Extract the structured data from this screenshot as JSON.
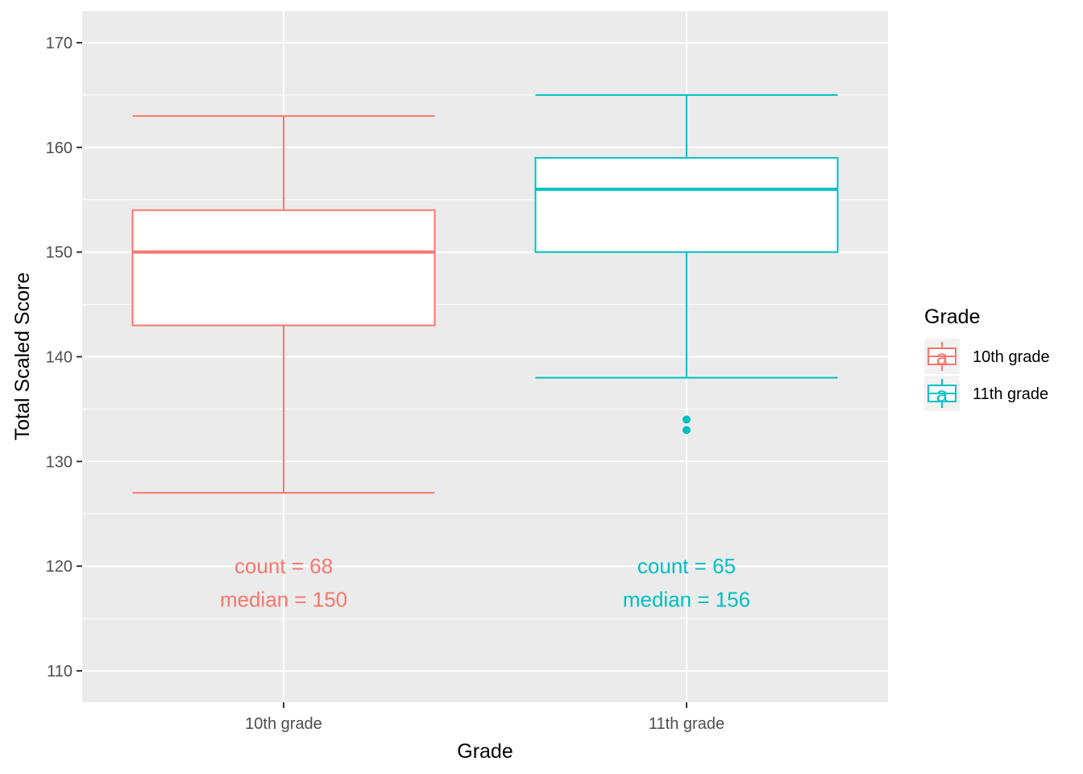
{
  "chart_data": {
    "type": "boxplot",
    "xlabel": "Grade",
    "ylabel": "Total Scaled Score",
    "ylim": [
      107,
      173
    ],
    "yticks": [
      110,
      120,
      130,
      140,
      150,
      160,
      170
    ],
    "categories": [
      "10th grade",
      "11th grade"
    ],
    "legend": {
      "title": "Grade",
      "position": "right",
      "entries": [
        "10th grade",
        "11th grade"
      ],
      "key_glyph": "a"
    },
    "series": [
      {
        "name": "10th grade",
        "color": "#F8766D",
        "whisker_low": 127,
        "q1": 143,
        "median": 150,
        "q3": 154,
        "whisker_high": 163,
        "outliers": [],
        "count_label": "count = 68",
        "median_label": "median = 150",
        "label_y": [
          120,
          116.8
        ]
      },
      {
        "name": "11th grade",
        "color": "#00BFC4",
        "whisker_low": 138,
        "q1": 150,
        "median": 156,
        "q3": 159,
        "whisker_high": 165,
        "outliers": [
          134,
          133
        ],
        "count_label": "count = 65",
        "median_label": "median = 156",
        "label_y": [
          120,
          116.8
        ]
      }
    ]
  }
}
